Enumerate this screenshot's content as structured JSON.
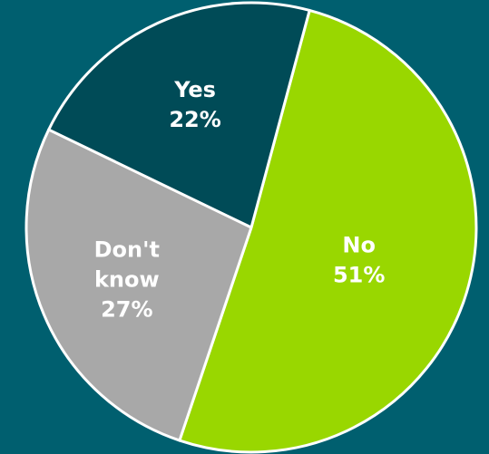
{
  "chart_data": {
    "type": "pie",
    "slices": [
      {
        "label_lines": [
          "No"
        ],
        "value": 51,
        "value_text": "51%",
        "color": "#99d700"
      },
      {
        "label_lines": [
          "Don't",
          "know"
        ],
        "value": 27,
        "value_text": "27%",
        "color": "#a8a8a8"
      },
      {
        "label_lines": [
          "Yes"
        ],
        "value": 22,
        "value_text": "22%",
        "color": "#004b57"
      }
    ],
    "background": "#005f6f",
    "slice_border_color": "#ffffff"
  }
}
